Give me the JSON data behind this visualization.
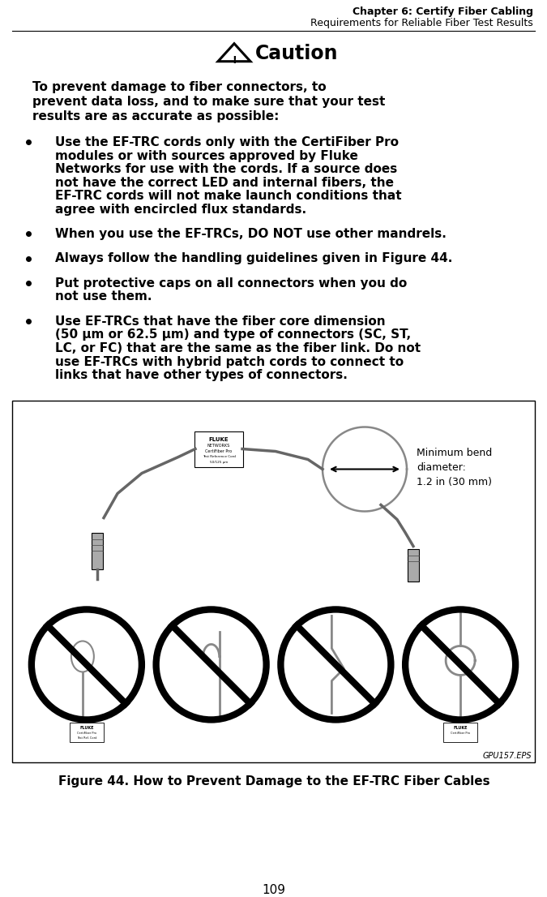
{
  "header_line1": "Chapter 6: Certify Fiber Cabling",
  "header_line2": "Requirements for Reliable Fiber Test Results",
  "caution_title": "Caution",
  "caution_intro_lines": [
    "To prevent damage to fiber connectors, to",
    "prevent data loss, and to make sure that your test",
    "results are as accurate as possible:"
  ],
  "bullet_items": [
    [
      "Use the EF-TRC cords only with the CertiFiber Pro",
      "modules or with sources approved by Fluke",
      "Networks for use with the cords. If a source does",
      "not have the correct LED and internal fibers, the",
      "EF-TRC cords will not make launch conditions that",
      "agree with encircled flux standards."
    ],
    [
      "When you use the EF-TRCs, DO NOT use other mandrels."
    ],
    [
      "Always follow the handling guidelines given in Figure 44."
    ],
    [
      "Put protective caps on all connectors when you do",
      "not use them."
    ],
    [
      "Use EF-TRCs that have the fiber core dimension",
      "(50 µm or 62.5 µm) and type of connectors (SC, ST,",
      "LC, or FC) that are the same as the fiber link. Do not",
      "use EF-TRCs with hybrid patch cords to connect to",
      "links that have other types of connectors."
    ]
  ],
  "figure_label": "GPU157.EPS",
  "figure_caption": "Figure 44. How to Prevent Damage to the EF-TRC Fiber Cables",
  "min_bend_text": "Minimum bend\ndiameter:\n1.2 in (30 mm)",
  "page_number": "109",
  "bg_color": "#ffffff",
  "text_color": "#000000"
}
